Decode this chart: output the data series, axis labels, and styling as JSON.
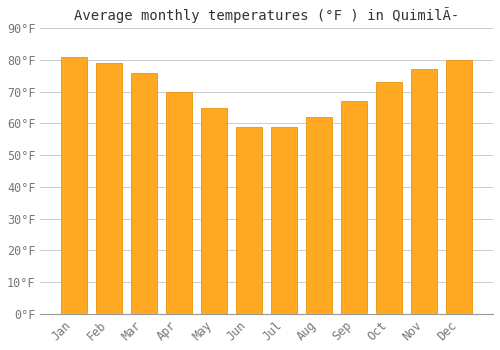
{
  "title": "Average monthly temperatures (°F ) in QuimilÃ­",
  "months": [
    "Jan",
    "Feb",
    "Mar",
    "Apr",
    "May",
    "Jun",
    "Jul",
    "Aug",
    "Sep",
    "Oct",
    "Nov",
    "Dec"
  ],
  "values": [
    81,
    79,
    76,
    70,
    65,
    59,
    59,
    62,
    67,
    73,
    77,
    80
  ],
  "bar_color": "#FFA822",
  "bar_edge_color": "#E8960A",
  "background_color": "#FFFFFF",
  "grid_color": "#CCCCCC",
  "text_color": "#777777",
  "title_color": "#333333",
  "ylim": [
    0,
    90
  ],
  "yticks": [
    0,
    10,
    20,
    30,
    40,
    50,
    60,
    70,
    80,
    90
  ],
  "ytick_labels": [
    "0°F",
    "10°F",
    "20°F",
    "30°F",
    "40°F",
    "50°F",
    "60°F",
    "70°F",
    "80°F",
    "90°F"
  ],
  "font_family": "monospace",
  "title_fontsize": 10,
  "tick_fontsize": 8.5
}
